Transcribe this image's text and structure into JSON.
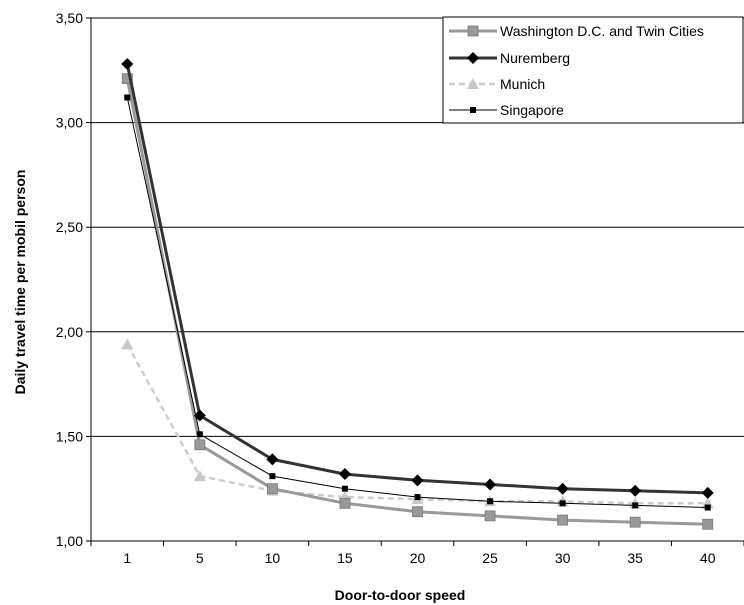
{
  "chart_data": {
    "type": "line",
    "title": "",
    "xlabel": "Door-to-door speed",
    "ylabel": "Daily travel time per mobil person",
    "categories": [
      "1",
      "5",
      "10",
      "15",
      "20",
      "25",
      "30",
      "35",
      "40"
    ],
    "ylim": [
      1.0,
      3.5
    ],
    "yticks": [
      "1,00",
      "1,50",
      "2,00",
      "2,50",
      "3,00",
      "3,50"
    ],
    "grid": "horizontal",
    "legend_position": "top-right",
    "series": [
      {
        "name": "Washington D.C. and Twin Cities",
        "values": [
          3.21,
          1.46,
          1.25,
          1.18,
          1.14,
          1.12,
          1.1,
          1.09,
          1.08
        ],
        "color": "#999999",
        "marker": "square",
        "dash": "solid",
        "width": 3
      },
      {
        "name": "Nuremberg",
        "values": [
          3.28,
          1.6,
          1.39,
          1.32,
          1.29,
          1.27,
          1.25,
          1.24,
          1.23
        ],
        "color": "#333333",
        "marker": "diamond",
        "dash": "solid",
        "width": 3
      },
      {
        "name": "Munich",
        "values": [
          1.94,
          1.31,
          1.24,
          1.21,
          1.2,
          1.19,
          1.19,
          1.18,
          1.18
        ],
        "color": "#cccccc",
        "marker": "triangle",
        "dash": "dashed",
        "width": 2.5
      },
      {
        "name": "Singapore",
        "values": [
          3.12,
          1.51,
          1.31,
          1.25,
          1.21,
          1.19,
          1.18,
          1.17,
          1.16
        ],
        "color": "#000000",
        "marker": "small-square",
        "dash": "solid",
        "width": 1
      }
    ]
  }
}
